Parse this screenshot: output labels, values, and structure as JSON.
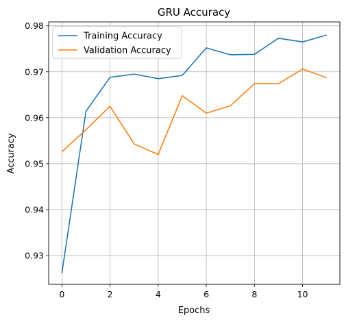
{
  "chart_data": {
    "type": "line",
    "title": "GRU Accuracy",
    "xlabel": "Epochs",
    "ylabel": "Accuracy",
    "x": [
      0,
      1,
      2,
      3,
      4,
      5,
      6,
      7,
      8,
      9,
      10,
      11
    ],
    "xlim": [
      -0.55,
      11.55
    ],
    "ylim": [
      0.92375,
      0.98085
    ],
    "xticks": [
      0,
      2,
      4,
      6,
      8,
      10
    ],
    "yticks": [
      0.93,
      0.94,
      0.95,
      0.96,
      0.97,
      0.98
    ],
    "xtick_labels": [
      "0",
      "2",
      "4",
      "6",
      "8",
      "10"
    ],
    "ytick_labels": [
      "0.93",
      "0.94",
      "0.95",
      "0.96",
      "0.97",
      "0.98"
    ],
    "grid": true,
    "legend_position": "top-left",
    "series": [
      {
        "name": "Training Accuracy",
        "color": "#1f77b4",
        "values": [
          0.9262,
          0.9614,
          0.9688,
          0.9695,
          0.9685,
          0.9692,
          0.9752,
          0.9737,
          0.9738,
          0.9773,
          0.9765,
          0.978
        ]
      },
      {
        "name": "Validation Accuracy",
        "color": "#ff7f0e",
        "values": [
          0.9526,
          0.9574,
          0.9625,
          0.9543,
          0.952,
          0.9648,
          0.961,
          0.9626,
          0.9674,
          0.9674,
          0.9706,
          0.9687
        ]
      }
    ]
  }
}
